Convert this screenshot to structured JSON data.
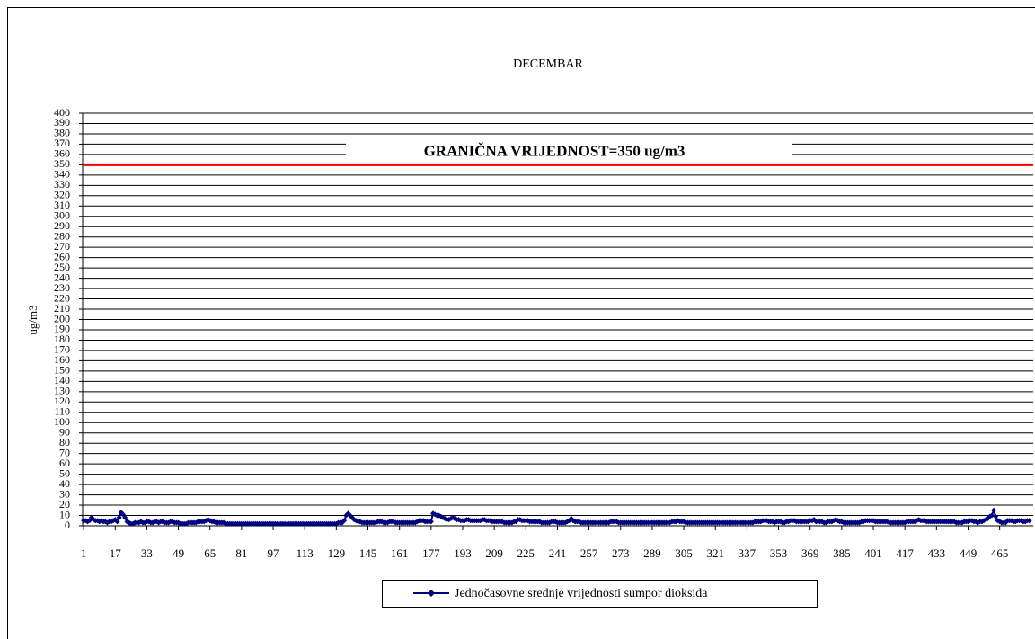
{
  "chart_data": {
    "type": "line",
    "title": "DECEMBAR",
    "y_label": "ug/m3",
    "annotation": {
      "text": "GRANIČNA VRIJEDNOST=350 ug/m3",
      "value": 350,
      "color": "#ff0000"
    },
    "series": [
      {
        "name": "Jednočasovne srednje vrijednosti sumpor dioksida",
        "color": "#000080",
        "values": [
          5,
          5,
          4,
          5,
          8,
          6,
          5,
          5,
          4,
          5,
          4,
          4,
          3,
          4,
          4,
          5,
          6,
          4,
          8,
          13,
          11,
          8,
          4,
          3,
          2,
          2,
          3,
          3,
          3,
          4,
          3,
          3,
          4,
          4,
          3,
          3,
          4,
          4,
          3,
          4,
          4,
          3,
          3,
          3,
          4,
          4,
          3,
          3,
          3,
          2,
          2,
          2,
          2,
          3,
          3,
          3,
          3,
          3,
          4,
          4,
          4,
          4,
          5,
          6,
          5,
          4,
          4,
          3,
          3,
          3,
          3,
          3,
          2,
          2,
          2,
          2,
          2,
          2,
          2,
          2,
          2,
          2,
          2,
          2,
          2,
          2,
          2,
          2,
          2,
          2,
          2,
          2,
          2,
          2,
          2,
          2,
          2,
          2,
          2,
          2,
          2,
          2,
          2,
          2,
          2,
          2,
          2,
          2,
          2,
          2,
          2,
          2,
          2,
          2,
          2,
          2,
          2,
          2,
          2,
          2,
          2,
          2,
          2,
          2,
          2,
          2,
          2,
          2,
          2,
          3,
          3,
          3,
          5,
          10,
          12,
          10,
          8,
          6,
          5,
          4,
          4,
          3,
          3,
          3,
          3,
          3,
          3,
          3,
          3,
          4,
          4,
          4,
          3,
          3,
          3,
          4,
          4,
          4,
          3,
          3,
          3,
          3,
          3,
          3,
          3,
          3,
          3,
          3,
          3,
          4,
          5,
          5,
          5,
          4,
          4,
          4,
          4,
          12,
          11,
          10,
          10,
          9,
          8,
          7,
          6,
          6,
          7,
          8,
          7,
          6,
          6,
          5,
          5,
          5,
          6,
          6,
          5,
          5,
          5,
          5,
          5,
          5,
          6,
          6,
          5,
          5,
          5,
          4,
          4,
          4,
          4,
          4,
          4,
          3,
          3,
          3,
          3,
          3,
          4,
          4,
          6,
          6,
          5,
          5,
          5,
          5,
          4,
          4,
          4,
          4,
          4,
          4,
          3,
          3,
          3,
          3,
          3,
          4,
          4,
          4,
          3,
          3,
          3,
          3,
          3,
          4,
          5,
          7,
          5,
          4,
          4,
          4,
          3,
          3,
          3,
          3,
          3,
          3,
          3,
          3,
          3,
          3,
          3,
          3,
          3,
          3,
          3,
          4,
          4,
          4,
          4,
          3,
          3,
          3,
          3,
          3,
          3,
          3,
          3,
          3,
          3,
          3,
          3,
          3,
          3,
          3,
          3,
          3,
          3,
          3,
          3,
          3,
          3,
          3,
          3,
          3,
          3,
          3,
          4,
          4,
          4,
          5,
          4,
          4,
          4,
          3,
          3,
          3,
          3,
          3,
          3,
          3,
          3,
          3,
          3,
          3,
          3,
          3,
          3,
          3,
          3,
          3,
          3,
          3,
          3,
          3,
          3,
          3,
          3,
          3,
          3,
          3,
          3,
          3,
          3,
          3,
          3,
          3,
          3,
          3,
          4,
          4,
          4,
          4,
          5,
          5,
          5,
          4,
          4,
          4,
          3,
          4,
          4,
          4,
          3,
          3,
          4,
          4,
          5,
          5,
          5,
          4,
          4,
          4,
          4,
          4,
          4,
          4,
          5,
          5,
          6,
          4,
          4,
          4,
          4,
          3,
          3,
          4,
          4,
          4,
          5,
          6,
          5,
          4,
          4,
          3,
          3,
          3,
          3,
          3,
          3,
          3,
          3,
          3,
          4,
          4,
          5,
          5,
          5,
          5,
          5,
          4,
          4,
          4,
          4,
          4,
          4,
          4,
          3,
          3,
          3,
          3,
          3,
          3,
          3,
          3,
          3,
          4,
          4,
          4,
          4,
          4,
          5,
          6,
          5,
          5,
          5,
          4,
          4,
          4,
          4,
          4,
          4,
          4,
          4,
          4,
          4,
          4,
          4,
          4,
          4,
          4,
          3,
          3,
          3,
          3,
          4,
          4,
          4,
          5,
          5,
          4,
          4,
          3,
          4,
          4,
          5,
          6,
          7,
          9,
          10,
          15,
          9,
          5,
          4,
          3,
          3,
          3,
          5,
          5,
          5,
          4,
          4,
          5,
          5,
          5,
          4,
          4,
          5,
          5
        ]
      }
    ],
    "x": [
      1,
      2,
      3,
      4,
      5,
      6,
      7,
      8,
      9,
      10,
      11,
      12,
      13,
      14,
      15,
      16,
      17,
      18,
      19,
      20,
      21,
      22,
      23,
      24,
      25,
      26,
      27,
      28,
      29,
      30,
      31,
      32,
      33,
      34,
      35,
      36,
      37,
      38,
      39,
      40,
      41,
      42,
      43,
      44,
      45,
      46,
      47,
      48,
      49,
      50,
      51,
      52,
      53,
      54,
      55,
      56,
      57,
      58,
      59,
      60,
      61,
      62,
      63,
      64,
      65,
      66,
      67,
      68,
      69,
      70,
      71,
      72,
      73,
      74,
      75,
      76,
      77,
      78,
      79,
      80,
      81,
      82,
      83,
      84,
      85,
      86,
      87,
      88,
      89,
      90,
      91,
      92,
      93,
      94,
      95,
      96,
      97,
      98,
      99,
      100,
      101,
      102,
      103,
      104,
      105,
      106,
      107,
      108,
      109,
      110,
      111,
      112,
      113,
      114,
      115,
      116,
      117,
      118,
      119,
      120,
      121,
      122,
      123,
      124,
      125,
      126,
      127,
      128,
      129,
      130,
      131,
      132,
      133,
      134,
      135,
      136,
      137,
      138,
      139,
      140,
      141,
      142,
      143,
      144,
      145,
      146,
      147,
      148,
      149,
      150,
      151,
      152,
      153,
      154,
      155,
      156,
      157,
      158,
      159,
      160,
      161,
      162,
      163,
      164,
      165,
      166,
      167,
      168,
      169,
      170,
      171,
      172,
      173,
      174,
      175,
      176,
      177,
      178,
      179,
      180,
      181,
      182,
      183,
      184,
      185,
      186,
      187,
      188,
      189,
      190,
      191,
      192,
      193,
      194,
      195,
      196,
      197,
      198,
      199,
      200,
      201,
      202,
      203,
      204,
      205,
      206,
      207,
      208,
      209,
      210,
      211,
      212,
      213,
      214,
      215,
      216,
      217,
      218,
      219,
      220,
      221,
      222,
      223,
      224,
      225,
      226,
      227,
      228,
      229,
      230,
      231,
      232,
      233,
      234,
      235,
      236,
      237,
      238,
      239,
      240,
      241,
      242,
      243,
      244,
      245,
      246,
      247,
      248,
      249,
      250,
      251,
      252,
      253,
      254,
      255,
      256,
      257,
      258,
      259,
      260,
      261,
      262,
      263,
      264,
      265,
      266,
      267,
      268,
      269,
      270,
      271,
      272,
      273,
      274,
      275,
      276,
      277,
      278,
      279,
      280,
      281,
      282,
      283,
      284,
      285,
      286,
      287,
      288,
      289,
      290,
      291,
      292,
      293,
      294,
      295,
      296,
      297,
      298,
      299,
      300,
      301,
      302,
      303,
      304,
      305,
      306,
      307,
      308,
      309,
      310,
      311,
      312,
      313,
      314,
      315,
      316,
      317,
      318,
      319,
      320,
      321,
      322,
      323,
      324,
      325,
      326,
      327,
      328,
      329,
      330,
      331,
      332,
      333,
      334,
      335,
      336,
      337,
      338,
      339,
      340,
      341,
      342,
      343,
      344,
      345,
      346,
      347,
      348,
      349,
      350,
      351,
      352,
      353,
      354,
      355,
      356,
      357,
      358,
      359,
      360,
      361,
      362,
      363,
      364,
      365,
      366,
      367,
      368,
      369,
      370,
      371,
      372,
      373,
      374,
      375,
      376,
      377,
      378,
      379,
      380,
      381,
      382,
      383,
      384,
      385,
      386,
      387,
      388,
      389,
      390,
      391,
      392,
      393,
      394,
      395,
      396,
      397,
      398,
      399,
      400,
      401,
      402,
      403,
      404,
      405,
      406,
      407,
      408,
      409,
      410,
      411,
      412,
      413,
      414,
      415,
      416,
      417,
      418,
      419,
      420,
      421,
      422,
      423,
      424,
      425,
      426,
      427,
      428,
      429,
      430,
      431,
      432,
      433,
      434,
      435,
      436,
      437,
      438,
      439,
      440,
      441,
      442,
      443,
      444,
      445,
      446,
      447,
      448,
      449,
      450,
      451,
      452,
      453,
      454,
      455,
      456,
      457,
      458,
      459,
      460,
      461,
      462,
      463,
      464,
      465,
      466,
      467,
      468,
      469,
      470,
      471,
      472,
      473,
      474,
      475,
      476,
      477,
      478,
      479,
      480
    ],
    "xlim": [
      0.5,
      482
    ],
    "xticks": [
      1,
      17,
      33,
      49,
      65,
      81,
      97,
      113,
      129,
      145,
      161,
      177,
      193,
      209,
      225,
      241,
      257,
      273,
      289,
      305,
      321,
      337,
      353,
      369,
      385,
      401,
      417,
      433,
      449,
      465
    ],
    "ylim": [
      0,
      400
    ],
    "yticks": [
      0,
      10,
      20,
      30,
      40,
      50,
      60,
      70,
      80,
      90,
      100,
      110,
      120,
      130,
      140,
      150,
      160,
      170,
      180,
      190,
      200,
      210,
      220,
      230,
      240,
      250,
      260,
      270,
      280,
      290,
      300,
      310,
      320,
      330,
      340,
      350,
      360,
      370,
      380,
      390,
      400
    ],
    "grid": true,
    "legend": "bottom"
  }
}
